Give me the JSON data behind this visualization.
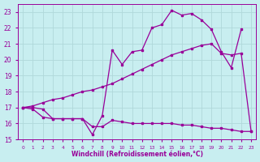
{
  "bg_color": "#c8eef0",
  "grid_color": "#b0d8da",
  "line_color": "#990099",
  "xlabel": "Windchill (Refroidissement éolien,°C)",
  "ylim": [
    15,
    23.5
  ],
  "xlim": [
    -0.5,
    23.5
  ],
  "yticks": [
    15,
    16,
    17,
    18,
    19,
    20,
    21,
    22,
    23
  ],
  "xticks": [
    0,
    1,
    2,
    3,
    4,
    5,
    6,
    7,
    8,
    9,
    10,
    11,
    12,
    13,
    14,
    15,
    16,
    17,
    18,
    19,
    20,
    21,
    22,
    23
  ],
  "line1_x": [
    0,
    1,
    2,
    3,
    4,
    5,
    6,
    7,
    8,
    9,
    10,
    11,
    12,
    13,
    14,
    15,
    16,
    17,
    18,
    19,
    20,
    21,
    22
  ],
  "line1_y": [
    17.0,
    17.0,
    16.9,
    16.3,
    16.3,
    16.3,
    16.3,
    15.3,
    16.5,
    20.6,
    19.7,
    20.5,
    20.6,
    22.0,
    22.2,
    23.1,
    22.8,
    22.9,
    22.5,
    21.9,
    20.5,
    19.5,
    21.9
  ],
  "line2_x": [
    0,
    1,
    2,
    3,
    4,
    5,
    6,
    7,
    8,
    9,
    10,
    11,
    12,
    13,
    14,
    15,
    16,
    17,
    18,
    19,
    20,
    21,
    22,
    23
  ],
  "line2_y": [
    17.0,
    17.1,
    17.3,
    17.5,
    17.6,
    17.8,
    18.0,
    18.1,
    18.3,
    18.5,
    18.8,
    19.1,
    19.4,
    19.7,
    20.0,
    20.3,
    20.5,
    20.7,
    20.9,
    21.0,
    20.4,
    20.3,
    20.4,
    15.5
  ],
  "line3_x": [
    0,
    1,
    2,
    3,
    4,
    5,
    6,
    7,
    8,
    9,
    10,
    11,
    12,
    13,
    14,
    15,
    16,
    17,
    18,
    19,
    20,
    21,
    22,
    23
  ],
  "line3_y": [
    17.0,
    16.9,
    16.4,
    16.3,
    16.3,
    16.3,
    16.3,
    15.8,
    15.8,
    16.2,
    16.1,
    16.0,
    16.0,
    16.0,
    16.0,
    16.0,
    15.9,
    15.9,
    15.8,
    15.7,
    15.7,
    15.6,
    15.5,
    15.5
  ]
}
